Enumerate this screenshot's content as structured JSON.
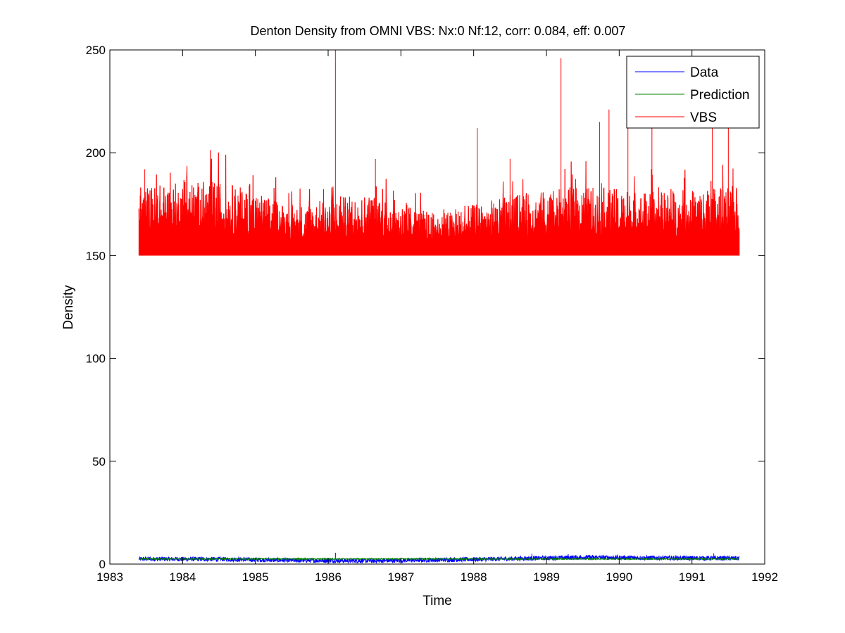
{
  "chart_data": {
    "type": "line",
    "title": "Denton Density from OMNI VBS: Nx:0 Nf:12, corr: 0.084, eff: 0.007",
    "xlabel": "Time",
    "ylabel": "Density",
    "xlim": [
      1983,
      1992
    ],
    "ylim": [
      0,
      250
    ],
    "x_ticks": [
      1983,
      1984,
      1985,
      1986,
      1987,
      1988,
      1989,
      1990,
      1991,
      1992
    ],
    "y_ticks": [
      0,
      50,
      100,
      150,
      200,
      250
    ],
    "grid": false,
    "legend_position": "top-right",
    "x_range_data": [
      1983.4,
      1991.65
    ],
    "series": [
      {
        "name": "Data",
        "color": "#0000ff",
        "baseline": 2.5,
        "profile": [
          [
            1983.4,
            2.5
          ],
          [
            1984.5,
            2.4
          ],
          [
            1985.5,
            1.8
          ],
          [
            1986.6,
            1.6
          ],
          [
            1987.5,
            2.0
          ],
          [
            1988.5,
            2.6
          ],
          [
            1989.5,
            3.3
          ],
          [
            1990.5,
            3.0
          ],
          [
            1991.65,
            2.8
          ]
        ],
        "spikes": [
          [
            1986.1,
            5.5
          ],
          [
            1988.8,
            5.0
          ],
          [
            1989.3,
            4.8
          ],
          [
            1991.3,
            5.2
          ]
        ]
      },
      {
        "name": "Prediction",
        "color": "#008000",
        "baseline": 2.5,
        "profile": [
          [
            1983.4,
            2.5
          ],
          [
            1991.65,
            2.5
          ]
        ],
        "spikes": []
      },
      {
        "name": "VBS",
        "color": "#ff0000",
        "baseline": 150,
        "profile": [
          [
            1983.4,
            172
          ],
          [
            1984.5,
            174
          ],
          [
            1985.5,
            166
          ],
          [
            1986.6,
            170
          ],
          [
            1987.5,
            163
          ],
          [
            1988.5,
            169
          ],
          [
            1989.5,
            172
          ],
          [
            1990.5,
            170
          ],
          [
            1991.65,
            172
          ]
        ],
        "spikes": [
          [
            1983.48,
            192
          ],
          [
            1986.1,
            250
          ],
          [
            1986.65,
            197
          ],
          [
            1988.05,
            212
          ],
          [
            1988.5,
            197
          ],
          [
            1989.2,
            246
          ],
          [
            1989.73,
            215
          ],
          [
            1989.86,
            221
          ],
          [
            1990.12,
            213
          ],
          [
            1990.45,
            212
          ],
          [
            1991.28,
            225
          ],
          [
            1991.5,
            220
          ]
        ]
      }
    ]
  }
}
